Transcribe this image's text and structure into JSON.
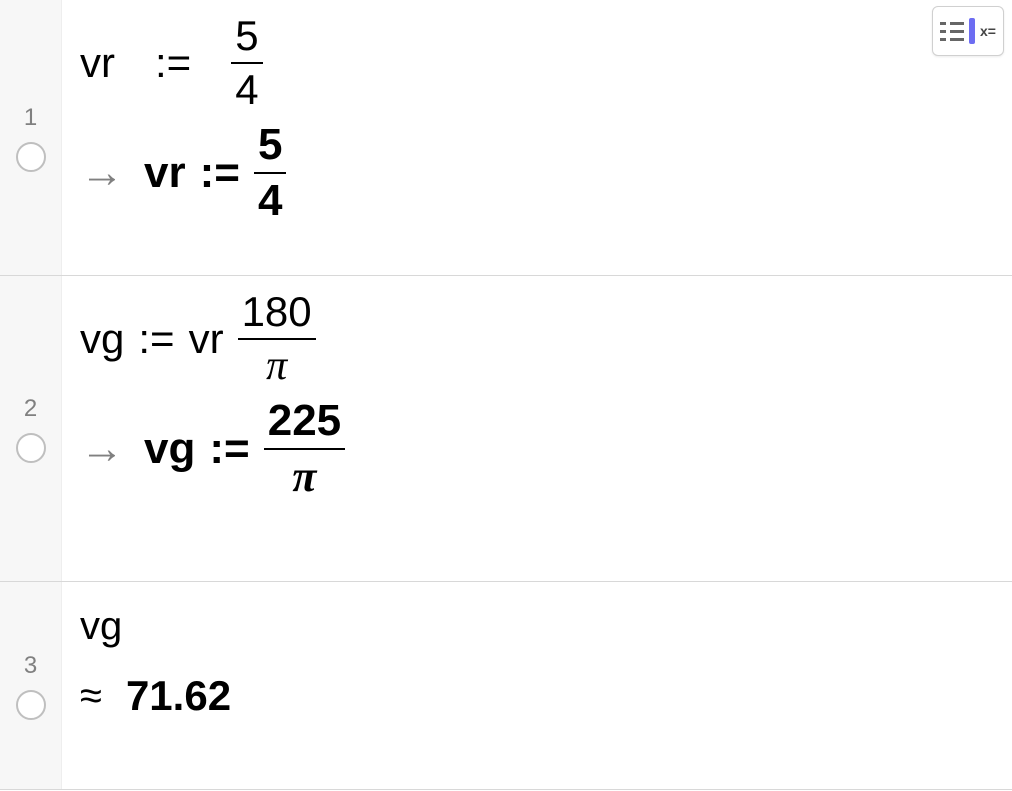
{
  "colors": {
    "background": "#ffffff",
    "gutter_bg": "#f7f7f7",
    "border": "#d8d8d8",
    "row_number": "#808080",
    "radio_border": "#bfbfbf",
    "text": "#000000",
    "arrow": "#808080",
    "toolbar_border": "#d0d0d0",
    "toolbar_accent": "#6d6df2",
    "toolbar_mark": "#666666"
  },
  "typography": {
    "input_fontsize_pt": 32,
    "output_fontsize_pt": 33,
    "output_fontweight": "bold",
    "row_num_fontsize_pt": 18,
    "font_family": "Arial"
  },
  "toolbar": {
    "button_name": "symbolic-assign-mode",
    "xeq_label": "x="
  },
  "rows": [
    {
      "index": "1",
      "input": {
        "var": "vr",
        "op": ":=",
        "frac": {
          "num": "5",
          "den": "4"
        }
      },
      "output": {
        "prefix": "→",
        "var": "vr",
        "op": ":=",
        "frac": {
          "num": "5",
          "den": "4"
        }
      }
    },
    {
      "index": "2",
      "input": {
        "var": "vg",
        "op": ":=",
        "factor": "vr",
        "frac": {
          "num": "180",
          "den": "π"
        }
      },
      "output": {
        "prefix": "→",
        "var": "vg",
        "op": ":=",
        "frac": {
          "num": "225",
          "den": "π"
        }
      }
    },
    {
      "index": "3",
      "input": {
        "var": "vg"
      },
      "output": {
        "prefix": "≈",
        "value": "71.62"
      }
    }
  ]
}
